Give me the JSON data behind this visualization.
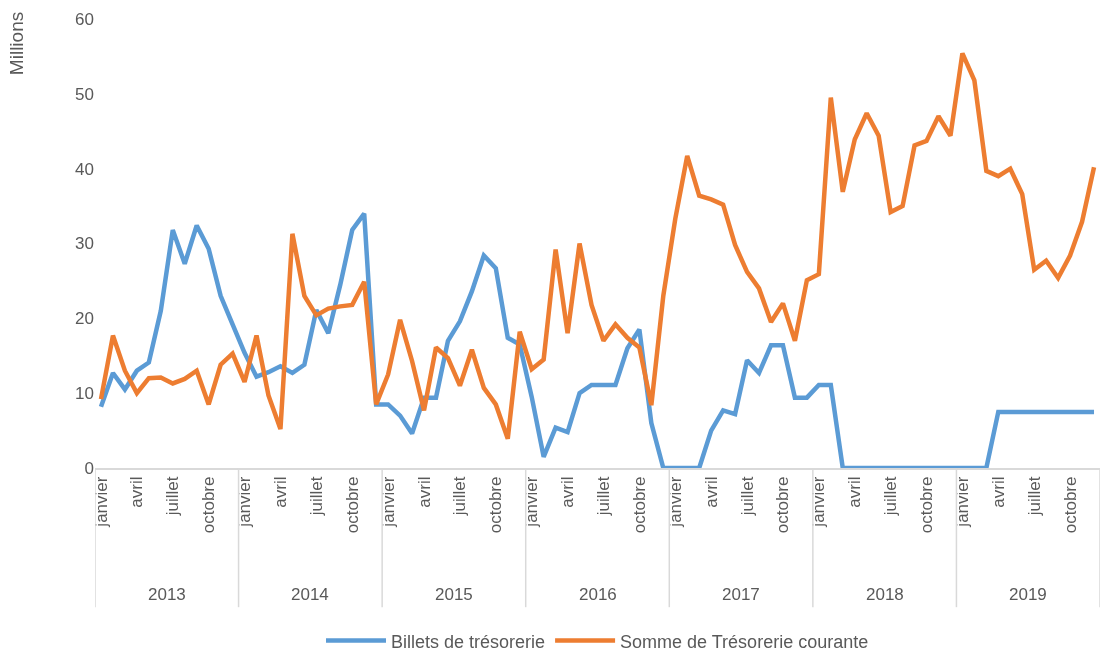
{
  "chart_data": {
    "type": "line",
    "ylabel": "Millions",
    "categories": [
      "janvier",
      null,
      null,
      "avril",
      null,
      null,
      "juillet",
      null,
      null,
      "octobre",
      null,
      null,
      "janvier",
      null,
      null,
      "avril",
      null,
      null,
      "juillet",
      null,
      null,
      "octobre",
      null,
      null,
      "janvier",
      null,
      null,
      "avril",
      null,
      null,
      "juillet",
      null,
      null,
      "octobre",
      null,
      null,
      "janvier",
      null,
      null,
      "avril",
      null,
      null,
      "juillet",
      null,
      null,
      "octobre",
      null,
      null,
      "janvier",
      null,
      null,
      "avril",
      null,
      null,
      "juillet",
      null,
      null,
      "octobre",
      null,
      null,
      "janvier",
      null,
      null,
      "avril",
      null,
      null,
      "juillet",
      null,
      null,
      "octobre",
      null,
      null,
      "janvier",
      null,
      null,
      "avril",
      null,
      null,
      "juillet",
      null,
      null,
      "octobre",
      null,
      null
    ],
    "series": [
      {
        "name": "Billets de trésorerie",
        "color": "#5b9bd5",
        "values": [
          8.2,
          12.7,
          10.5,
          13.0,
          14.1,
          21.0,
          31.8,
          27.3,
          32.4,
          29.3,
          23.0,
          19.2,
          15.4,
          12.2,
          12.8,
          13.6,
          12.7,
          13.8,
          21.1,
          18.0,
          24.5,
          31.8,
          34.0,
          8.5,
          8.5,
          7.0,
          4.6,
          9.4,
          9.4,
          17.0,
          19.6,
          23.6,
          28.4,
          26.7,
          17.4,
          16.5,
          9.5,
          1.5,
          5.4,
          4.8,
          10.0,
          11.1,
          11.1,
          11.1,
          16.0,
          18.5,
          6.0,
          0,
          0,
          0,
          0,
          5.0,
          7.7,
          7.2,
          14.4,
          12.7,
          16.4,
          16.4,
          9.4,
          9.4,
          11.1,
          11.1,
          0,
          0,
          0,
          0,
          0,
          0,
          0,
          0,
          0,
          0,
          0,
          0,
          0,
          7.5,
          7.5,
          7.5,
          7.5,
          7.5,
          7.5,
          7.5,
          7.5,
          7.5
        ]
      },
      {
        "name": "Somme de Trésorerie courante",
        "color": "#ed7d31",
        "values": [
          9.2,
          17.7,
          13.0,
          10.0,
          12.0,
          12.1,
          11.3,
          11.9,
          13.0,
          8.5,
          13.8,
          15.3,
          11.5,
          17.7,
          9.7,
          5.2,
          31.3,
          23.0,
          20.4,
          21.3,
          21.6,
          21.8,
          24.9,
          8.5,
          12.5,
          19.8,
          14.3,
          7.7,
          16.1,
          14.7,
          11.0,
          15.8,
          10.7,
          8.5,
          3.9,
          18.2,
          13.2,
          14.5,
          29.2,
          18.0,
          30.0,
          21.8,
          17.0,
          19.2,
          17.4,
          16.1,
          8.4,
          23.0,
          33.3,
          41.7,
          36.4,
          35.9,
          35.2,
          29.8,
          26.2,
          24.0,
          19.5,
          22.0,
          17.0,
          25.1,
          25.9,
          49.5,
          36.9,
          43.9,
          47.4,
          44.4,
          34.2,
          35.0,
          43.1,
          43.7,
          47.0,
          44.4,
          55.4,
          51.8,
          39.7,
          39.0,
          40.0,
          36.6,
          26.5,
          27.7,
          25.4,
          28.4,
          32.9,
          40.2
        ]
      }
    ],
    "annotations": [
      "2013",
      "2014",
      "2015",
      "2016",
      "2017",
      "2018",
      "2019"
    ],
    "ylim": [
      0,
      60
    ],
    "yticks": [
      0,
      10,
      20,
      30,
      40,
      50,
      60
    ],
    "legend": "bottom",
    "marker": "none",
    "line_style": "solid"
  }
}
